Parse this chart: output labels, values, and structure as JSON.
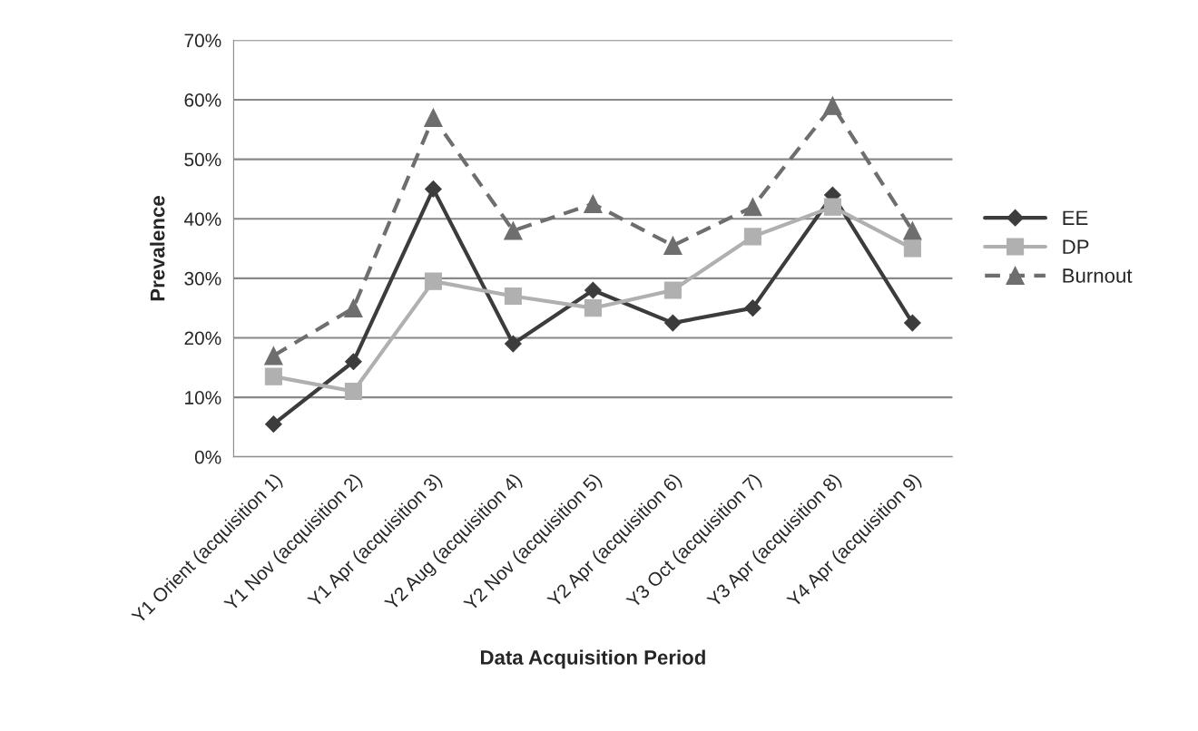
{
  "chart_data": {
    "type": "line",
    "xlabel": "Data Acquisition Period",
    "ylabel": "Prevalence",
    "categories": [
      "Y1 Orient (acquisition 1)",
      "Y1 Nov (acquisition 2)",
      "Y1 Apr (acquisition 3)",
      "Y2 Aug (acquisition 4)",
      "Y2 Nov (acquisition 5)",
      "Y2 Apr (acquisition 6)",
      "Y3 Oct (acquisition 7)",
      "Y3 Apr (acquisition 8)",
      "Y4 Apr (acquisition 9)"
    ],
    "series": [
      {
        "name": "EE",
        "color": "#3c3c3c",
        "marker": "diamond",
        "line_style": "solid",
        "values": [
          5.5,
          16,
          45,
          19,
          28,
          22.5,
          25,
          44,
          22.5
        ]
      },
      {
        "name": "DP",
        "color": "#b0b0b0",
        "marker": "square",
        "line_style": "solid",
        "values": [
          13.5,
          11,
          29.5,
          27,
          25,
          28,
          37,
          42,
          35
        ]
      },
      {
        "name": "Burnout",
        "color": "#6e6e6e",
        "marker": "triangle",
        "line_style": "dashed",
        "values": [
          17,
          25,
          57,
          38,
          42.5,
          35.5,
          42,
          59,
          38
        ]
      }
    ],
    "ylim": [
      0,
      70
    ],
    "yticks": [
      {
        "value": 0,
        "label": "0%"
      },
      {
        "value": 10,
        "label": "10%"
      },
      {
        "value": 20,
        "label": "20%"
      },
      {
        "value": 30,
        "label": "30%"
      },
      {
        "value": 40,
        "label": "40%"
      },
      {
        "value": 50,
        "label": "50%"
      },
      {
        "value": 60,
        "label": "60%"
      },
      {
        "value": 70,
        "label": "70%"
      }
    ],
    "grid": "y",
    "legend": "right"
  }
}
